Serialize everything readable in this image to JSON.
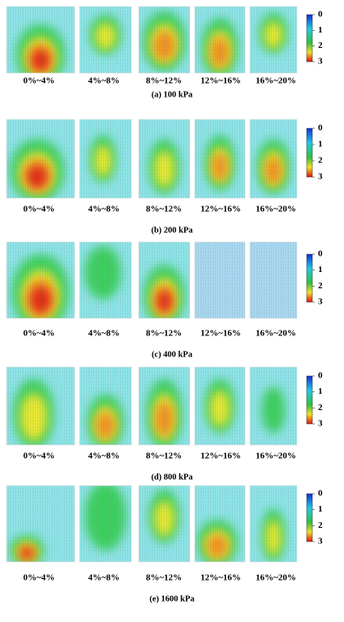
{
  "rows": [
    {
      "caption": "(a) 100 kPa",
      "panels": [
        "0%~4%",
        "4%~8%",
        "8%~12%",
        "12%~16%",
        "16%~20%"
      ]
    },
    {
      "caption": "(b) 200 kPa",
      "panels": [
        "0%~4%",
        "4%~8%",
        "8%~12%",
        "12%~16%",
        "16%~20%"
      ]
    },
    {
      "caption": "(c) 400 kPa",
      "panels": [
        "0%~4%",
        "4%~8%",
        "8%~12%",
        "12%~16%",
        "16%~20%"
      ]
    },
    {
      "caption": "(d) 800 kPa",
      "panels": [
        "0%~4%",
        "4%~8%",
        "8%~12%",
        "12%~16%",
        "16%~20%"
      ]
    },
    {
      "caption": "(e) 1600 kPa",
      "panels": [
        "0%~4%",
        "4%~8%",
        "8%~12%",
        "12%~16%",
        "16%~20%"
      ]
    }
  ],
  "colorbar": {
    "ticks": [
      "0",
      "1",
      "2",
      "3"
    ]
  }
}
